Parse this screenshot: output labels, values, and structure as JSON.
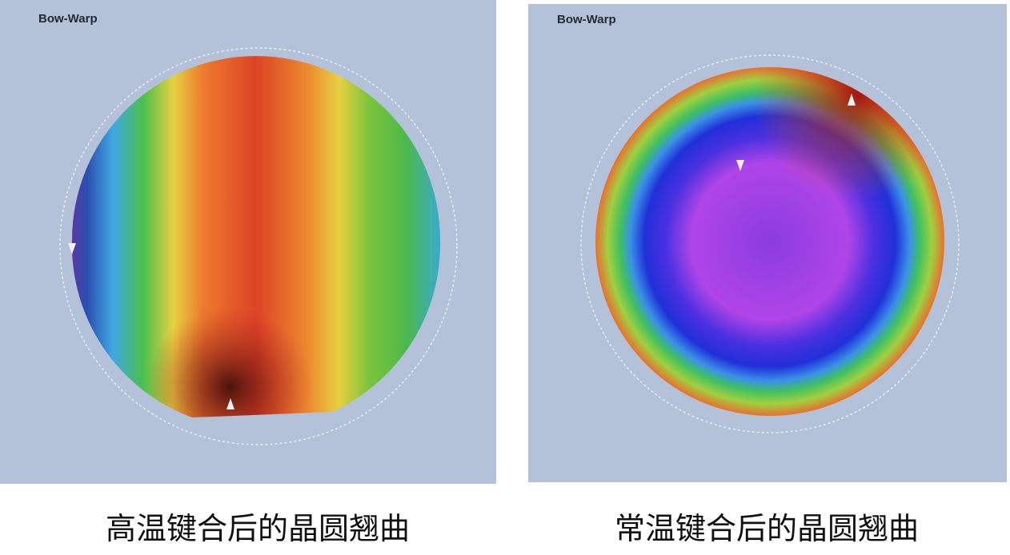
{
  "panels": [
    {
      "title": "Bow-Warp",
      "caption": "高温键合后的晶圆翘曲"
    },
    {
      "title": "Bow-Warp",
      "caption": "常温键合后的晶圆翘曲"
    }
  ]
}
